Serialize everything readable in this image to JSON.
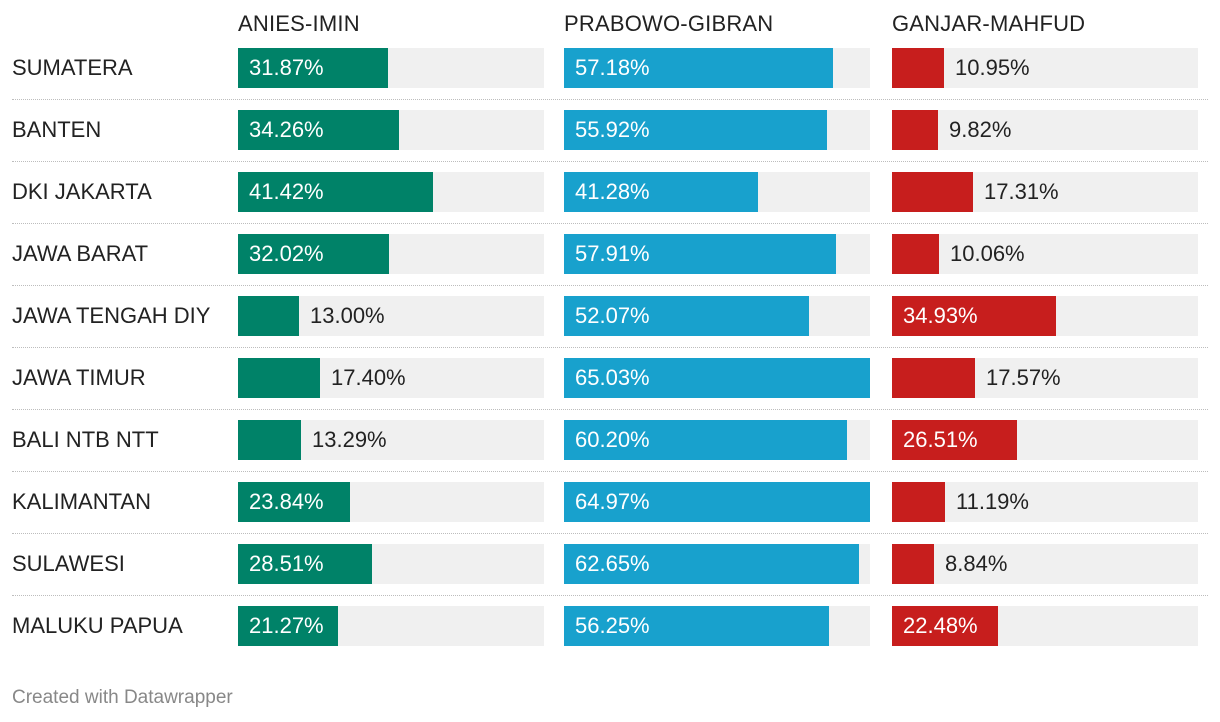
{
  "footer": "Created with Datawrapper",
  "colors": {
    "ANIES-IMIN": "#008268",
    "PRABOWO-GIBRAN": "#18a1cd",
    "GANJAR-MAHFUD": "#c71e1d",
    "track": "#f0f0f0"
  },
  "chart_data": {
    "type": "bar",
    "orientation": "horizontal",
    "grid": false,
    "xlim": [
      0,
      65.03
    ],
    "categories": [
      "SUMATERA",
      "BANTEN",
      "DKI JAKARTA",
      "JAWA BARAT",
      "JAWA TENGAH DIY",
      "JAWA TIMUR",
      "BALI NTB NTT",
      "KALIMANTAN",
      "SULAWESI",
      "MALUKU PAPUA"
    ],
    "series": [
      {
        "name": "ANIES-IMIN",
        "values": [
          31.87,
          34.26,
          41.42,
          32.02,
          13.0,
          17.4,
          13.29,
          23.84,
          28.51,
          21.27
        ],
        "labels": [
          "31.87%",
          "34.26%",
          "41.42%",
          "32.02%",
          "13.00%",
          "17.40%",
          "13.29%",
          "23.84%",
          "28.51%",
          "21.27%"
        ]
      },
      {
        "name": "PRABOWO-GIBRAN",
        "values": [
          57.18,
          55.92,
          41.28,
          57.91,
          52.07,
          65.03,
          60.2,
          64.97,
          62.65,
          56.25
        ],
        "labels": [
          "57.18%",
          "55.92%",
          "41.28%",
          "57.91%",
          "52.07%",
          "65.03%",
          "60.20%",
          "64.97%",
          "62.65%",
          "56.25%"
        ]
      },
      {
        "name": "GANJAR-MAHFUD",
        "values": [
          10.95,
          9.82,
          17.31,
          10.06,
          34.93,
          17.57,
          26.51,
          11.19,
          8.84,
          22.48
        ],
        "labels": [
          "10.95%",
          "9.82%",
          "17.31%",
          "10.06%",
          "34.93%",
          "17.57%",
          "26.51%",
          "11.19%",
          "8.84%",
          "22.48%"
        ]
      }
    ]
  }
}
